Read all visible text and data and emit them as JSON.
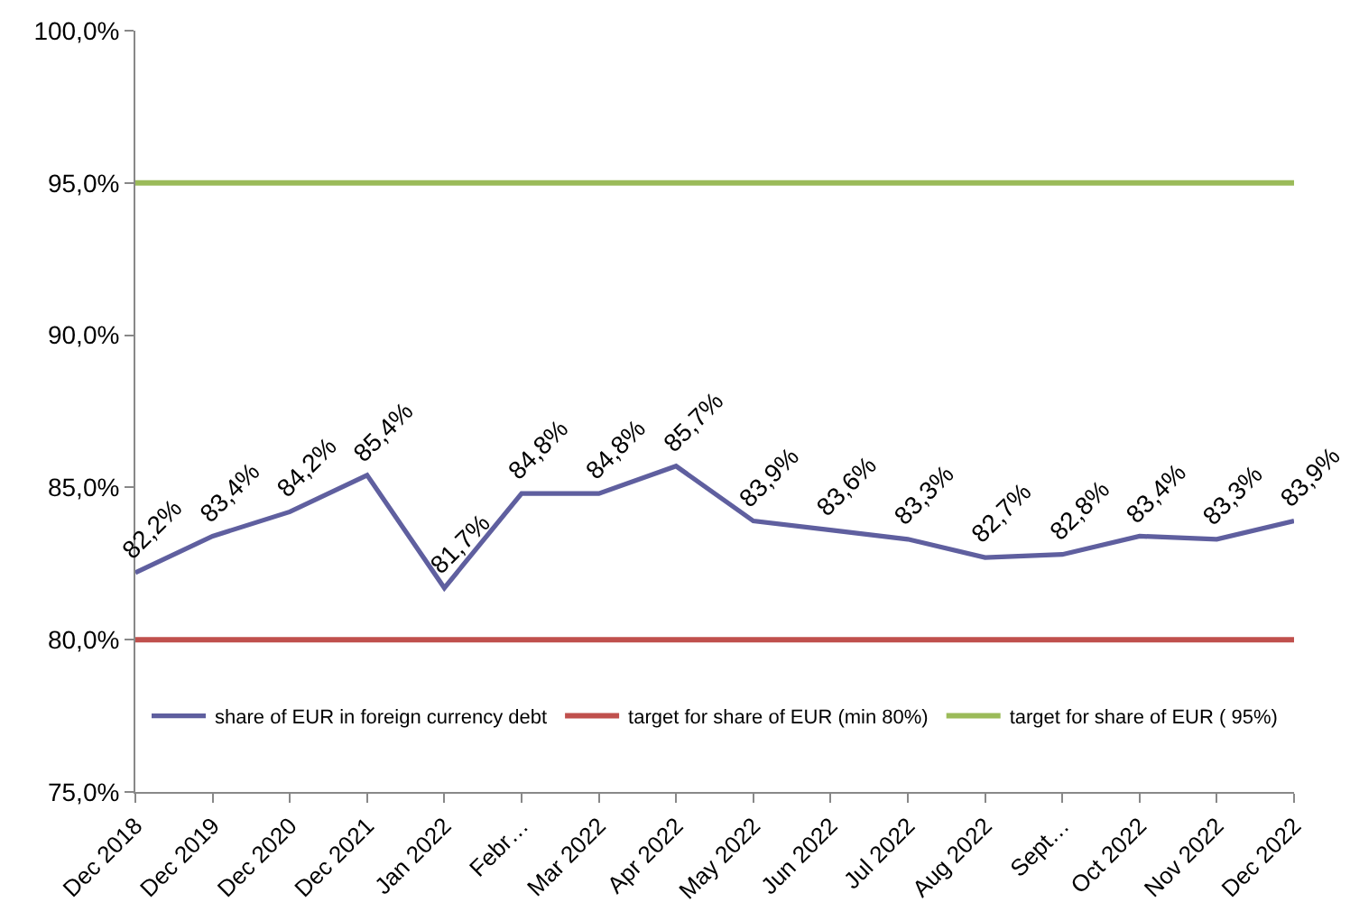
{
  "chart_data": {
    "type": "line",
    "categories": [
      "Dec 2018",
      "Dec 2019",
      "Dec 2020",
      "Dec 2021",
      "Jan 2022",
      "Febr…",
      "Mar 2022",
      "Apr 2022",
      "May 2022",
      "Jun 2022",
      "Jul 2022",
      "Aug 2022",
      "Sept…",
      "Oct 2022",
      "Nov 2022",
      "Dec 2022"
    ],
    "series": [
      {
        "name": "share of EUR in foreign currency debt",
        "color": "#5f5f9f",
        "values": [
          82.2,
          83.4,
          84.2,
          85.4,
          81.7,
          84.8,
          84.8,
          85.7,
          83.9,
          83.6,
          83.3,
          82.7,
          82.8,
          83.4,
          83.3,
          83.9
        ],
        "value_labels": [
          "82,2%",
          "83,4%",
          "84,2%",
          "85,4%",
          "81,7%",
          "84,8%",
          "84,8%",
          "85,7%",
          "83,9%",
          "83,6%",
          "83,3%",
          "82,7%",
          "82,8%",
          "83,4%",
          "83,3%",
          "83,9%"
        ]
      }
    ],
    "ylim": [
      75,
      100
    ],
    "yticks": [
      {
        "value": 75,
        "label": "75,0%"
      },
      {
        "value": 80,
        "label": "80,0%"
      },
      {
        "value": 85,
        "label": "85,0%"
      },
      {
        "value": 90,
        "label": "90,0%"
      },
      {
        "value": 95,
        "label": "95,0%"
      },
      {
        "value": 100,
        "label": "100,0%"
      }
    ],
    "ref_lines": [
      {
        "axis": "y",
        "value": 80,
        "label": "target for share of EUR (min 80%)",
        "color": "#c0504d"
      },
      {
        "axis": "y",
        "value": 95,
        "label": "target for share of EUR ( 95%)",
        "color": "#9bbb59"
      }
    ],
    "grid": false,
    "legend": "bottom",
    "marker": "none",
    "line_style": "solid"
  }
}
